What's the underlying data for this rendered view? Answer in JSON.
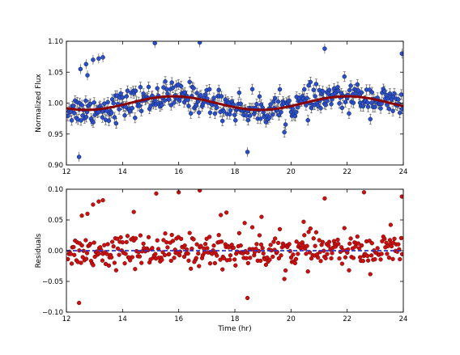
{
  "chart_data": [
    {
      "type": "scatter",
      "panel": "top",
      "xlabel": "",
      "ylabel": "Normalized Flux",
      "xlim": [
        12,
        24
      ],
      "ylim": [
        0.9,
        1.1
      ],
      "xticks": [
        "12",
        "14",
        "16",
        "18",
        "20",
        "22",
        "24"
      ],
      "yticks": [
        "0.90",
        "0.95",
        "1.00",
        "1.05",
        "1.10"
      ],
      "grid": false,
      "marker_color": "#2c4fc4",
      "errorbar_color": "#555555",
      "model_color": "#8b0000",
      "typical_errorbar": 0.008,
      "model": {
        "description": "baseline + sinusoidal variation",
        "baseline": 1.0,
        "amplitude": 0.011,
        "period_hr": 6.2,
        "phase_peak_hr": 15.8
      },
      "outliers": [
        [
          12.45,
          0.913
        ],
        [
          12.5,
          1.055
        ],
        [
          12.7,
          1.063
        ],
        [
          12.75,
          1.045
        ],
        [
          12.95,
          1.07
        ],
        [
          13.15,
          1.072
        ],
        [
          13.3,
          1.074
        ],
        [
          15.15,
          1.097
        ],
        [
          16.75,
          1.098
        ],
        [
          18.45,
          0.921
        ],
        [
          21.2,
          1.088
        ],
        [
          23.95,
          1.08
        ]
      ],
      "n_points": 360
    },
    {
      "type": "scatter",
      "panel": "bottom",
      "xlabel": "Time (hr)",
      "ylabel": "Residuals",
      "xlim": [
        12,
        24
      ],
      "ylim": [
        -0.1,
        0.1
      ],
      "xticks": [
        "12",
        "14",
        "16",
        "18",
        "20",
        "22",
        "24"
      ],
      "yticks": [
        "−0.10",
        "−0.05",
        "0.00",
        "0.05",
        "0.10"
      ],
      "grid": false,
      "marker_color": "#cc1010",
      "zero_line_color": "#3333cc",
      "outliers": [
        [
          12.45,
          -0.085
        ],
        [
          12.55,
          0.057
        ],
        [
          12.75,
          0.06
        ],
        [
          12.95,
          0.075
        ],
        [
          13.15,
          0.08
        ],
        [
          13.3,
          0.082
        ],
        [
          14.4,
          0.063
        ],
        [
          15.2,
          0.093
        ],
        [
          16.0,
          0.095
        ],
        [
          16.75,
          0.098
        ],
        [
          17.5,
          0.058
        ],
        [
          17.7,
          0.062
        ],
        [
          18.35,
          0.045
        ],
        [
          18.45,
          -0.077
        ],
        [
          18.95,
          0.055
        ],
        [
          20.45,
          0.047
        ],
        [
          21.2,
          0.085
        ],
        [
          22.6,
          0.095
        ],
        [
          23.55,
          0.042
        ],
        [
          23.95,
          0.088
        ]
      ],
      "n_points": 360
    }
  ]
}
